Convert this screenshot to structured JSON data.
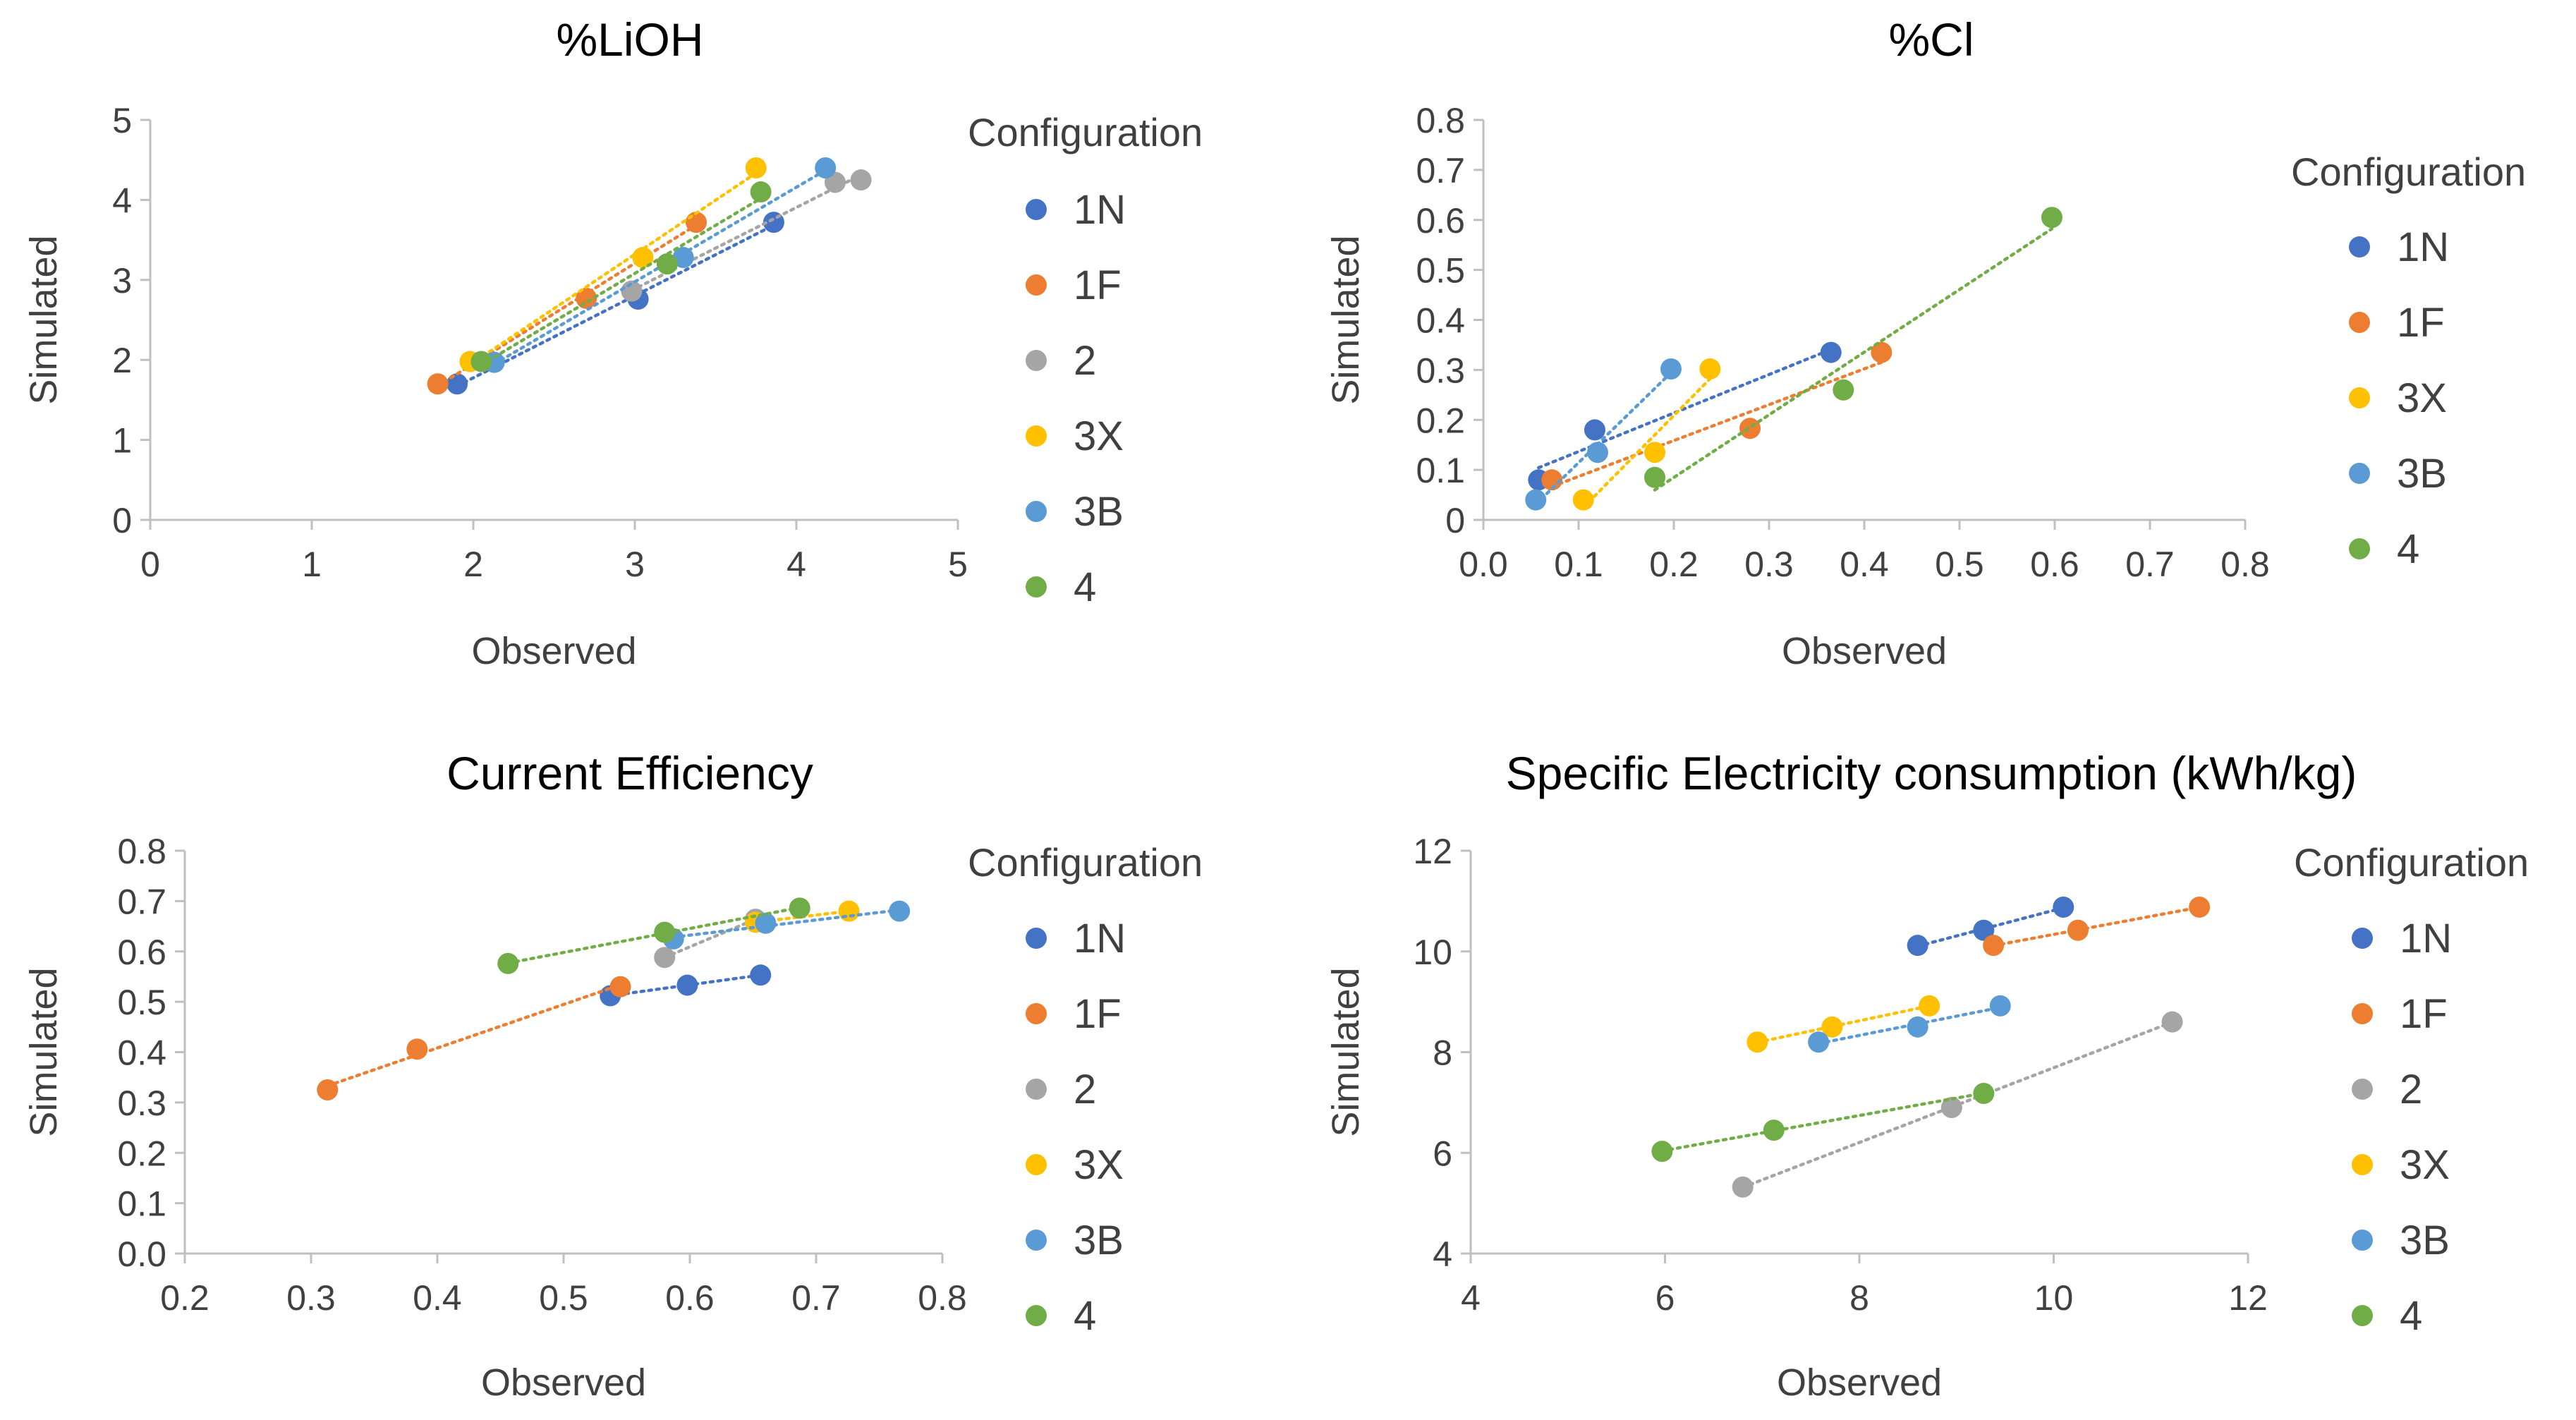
{
  "chart_data": [
    {
      "type": "scatter",
      "title": "%LiOH",
      "xlabel": "Observed",
      "ylabel": "Simulated",
      "xlim": [
        0,
        5
      ],
      "ylim": [
        0,
        5
      ],
      "xticks": [
        "0",
        "1",
        "2",
        "3",
        "4",
        "5"
      ],
      "yticks": [
        "0",
        "1",
        "2",
        "3",
        "4",
        "5"
      ],
      "legend_title": "Configuration",
      "legend_position": "right",
      "series": [
        {
          "name": "1N",
          "color": "#4472C4",
          "points": [
            [
              1.9,
              1.7
            ],
            [
              3.02,
              2.76
            ],
            [
              3.86,
              3.72
            ]
          ]
        },
        {
          "name": "1F",
          "color": "#ED7D31",
          "points": [
            [
              1.78,
              1.7
            ],
            [
              2.7,
              2.77
            ],
            [
              3.38,
              3.72
            ]
          ]
        },
        {
          "name": "2",
          "color": "#A5A5A5",
          "points": [
            [
              2.98,
              2.86
            ],
            [
              4.24,
              4.22
            ],
            [
              4.4,
              4.25
            ]
          ]
        },
        {
          "name": "3X",
          "color": "#FFC000",
          "points": [
            [
              1.98,
              1.98
            ],
            [
              3.05,
              3.28
            ],
            [
              3.75,
              4.4
            ]
          ]
        },
        {
          "name": "3B",
          "color": "#5B9BD5",
          "points": [
            [
              2.13,
              1.97
            ],
            [
              3.3,
              3.28
            ],
            [
              4.18,
              4.4
            ]
          ]
        },
        {
          "name": "4",
          "color": "#70AD47",
          "points": [
            [
              2.05,
              1.98
            ],
            [
              3.2,
              3.2
            ],
            [
              3.78,
              4.1
            ]
          ]
        }
      ]
    },
    {
      "type": "scatter",
      "title": "%Cl",
      "xlabel": "Observed",
      "ylabel": "Simulated",
      "xlim": [
        0,
        0.8
      ],
      "ylim": [
        0,
        0.8
      ],
      "xticks": [
        "0.0",
        "0.1",
        "0.2",
        "0.3",
        "0.4",
        "0.5",
        "0.6",
        "0.7",
        "0.8"
      ],
      "yticks": [
        "0",
        "0.1",
        "0.2",
        "0.3",
        "0.4",
        "0.5",
        "0.6",
        "0.7",
        "0.8"
      ],
      "legend_title": "Configuration",
      "legend_position": "right",
      "series": [
        {
          "name": "1N",
          "color": "#4472C4",
          "points": [
            [
              0.058,
              0.08
            ],
            [
              0.117,
              0.18
            ],
            [
              0.365,
              0.335
            ]
          ]
        },
        {
          "name": "1F",
          "color": "#ED7D31",
          "points": [
            [
              0.072,
              0.08
            ],
            [
              0.28,
              0.183
            ],
            [
              0.418,
              0.335
            ]
          ]
        },
        {
          "name": "3X",
          "color": "#FFC000",
          "points": [
            [
              0.105,
              0.04
            ],
            [
              0.18,
              0.135
            ],
            [
              0.238,
              0.302
            ]
          ]
        },
        {
          "name": "3B",
          "color": "#5B9BD5",
          "points": [
            [
              0.055,
              0.04
            ],
            [
              0.12,
              0.135
            ],
            [
              0.197,
              0.302
            ]
          ]
        },
        {
          "name": "4",
          "color": "#70AD47",
          "points": [
            [
              0.18,
              0.085
            ],
            [
              0.378,
              0.26
            ],
            [
              0.597,
              0.605
            ]
          ]
        }
      ]
    },
    {
      "type": "scatter",
      "title": "Current Efficiency",
      "xlabel": "Observed",
      "ylabel": "Simulated",
      "xlim": [
        0.2,
        0.8
      ],
      "ylim": [
        0,
        0.8
      ],
      "xticks": [
        "0.2",
        "0.3",
        "0.4",
        "0.5",
        "0.6",
        "0.7",
        "0.8"
      ],
      "yticks": [
        "0.0",
        "0.1",
        "0.2",
        "0.3",
        "0.4",
        "0.5",
        "0.6",
        "0.7",
        "0.8"
      ],
      "legend_title": "Configuration",
      "legend_position": "right",
      "series": [
        {
          "name": "1N",
          "color": "#4472C4",
          "points": [
            [
              0.537,
              0.512
            ],
            [
              0.598,
              0.533
            ],
            [
              0.656,
              0.553
            ]
          ]
        },
        {
          "name": "1F",
          "color": "#ED7D31",
          "points": [
            [
              0.313,
              0.325
            ],
            [
              0.384,
              0.406
            ],
            [
              0.545,
              0.53
            ]
          ]
        },
        {
          "name": "2",
          "color": "#A5A5A5",
          "points": [
            [
              0.58,
              0.588
            ],
            [
              0.652,
              0.664
            ]
          ]
        },
        {
          "name": "3X",
          "color": "#FFC000",
          "points": [
            [
              0.652,
              0.658
            ],
            [
              0.726,
              0.68
            ]
          ]
        },
        {
          "name": "3B",
          "color": "#5B9BD5",
          "points": [
            [
              0.587,
              0.625
            ],
            [
              0.66,
              0.656
            ],
            [
              0.766,
              0.68
            ]
          ]
        },
        {
          "name": "4",
          "color": "#70AD47",
          "points": [
            [
              0.456,
              0.576
            ],
            [
              0.58,
              0.638
            ],
            [
              0.687,
              0.686
            ]
          ]
        }
      ]
    },
    {
      "type": "scatter",
      "title": "Specific Electricity consumption (kWh/kg)",
      "xlabel": "Observed",
      "ylabel": "Simulated",
      "xlim": [
        4,
        12
      ],
      "ylim": [
        4,
        12
      ],
      "xticks": [
        "4",
        "6",
        "8",
        "10",
        "12"
      ],
      "yticks": [
        "4",
        "6",
        "8",
        "10",
        "12"
      ],
      "legend_title": "Configuration",
      "legend_position": "right",
      "series": [
        {
          "name": "1N",
          "color": "#4472C4",
          "points": [
            [
              8.6,
              10.12
            ],
            [
              9.28,
              10.42
            ],
            [
              10.1,
              10.88
            ]
          ]
        },
        {
          "name": "1F",
          "color": "#ED7D31",
          "points": [
            [
              9.38,
              10.12
            ],
            [
              10.25,
              10.42
            ],
            [
              11.5,
              10.88
            ]
          ]
        },
        {
          "name": "2",
          "color": "#A5A5A5",
          "points": [
            [
              6.8,
              5.32
            ],
            [
              8.95,
              6.9
            ],
            [
              11.22,
              8.6
            ]
          ]
        },
        {
          "name": "3X",
          "color": "#FFC000",
          "points": [
            [
              6.95,
              8.2
            ],
            [
              7.72,
              8.5
            ],
            [
              8.72,
              8.92
            ]
          ]
        },
        {
          "name": "3B",
          "color": "#5B9BD5",
          "points": [
            [
              7.58,
              8.2
            ],
            [
              8.6,
              8.5
            ],
            [
              9.45,
              8.92
            ]
          ]
        },
        {
          "name": "4",
          "color": "#70AD47",
          "points": [
            [
              5.97,
              6.03
            ],
            [
              7.12,
              6.45
            ],
            [
              9.28,
              7.18
            ]
          ]
        }
      ]
    }
  ]
}
